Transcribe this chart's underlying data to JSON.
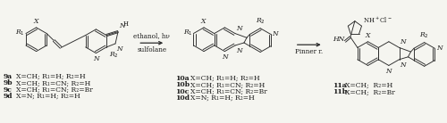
{
  "bg_color": "#f5f5f0",
  "fig_width": 5.0,
  "fig_height": 1.38,
  "dpi": 100,
  "labels_9": [
    [
      "9a",
      "X=CH; R₁=H; R₂=H"
    ],
    [
      "9b",
      "X=CH; R₁=CN; R₂=H"
    ],
    [
      "9c",
      "X=CH; R₁=CN; R₂=Br"
    ],
    [
      "9d",
      "X=N; R₁=H; R₂=H"
    ]
  ],
  "labels_10": [
    [
      "10a",
      "X=CH; R₁=H; R₂=H"
    ],
    [
      "10b",
      "X=CH; R₁=CN; R₂=H"
    ],
    [
      "10c",
      "X=CH; R₁=CN; R₂=Br"
    ],
    [
      "10d",
      "X=N; R₁=H; R₂=H"
    ]
  ],
  "labels_11": [
    [
      "11a",
      "X=CH;  R₂=H"
    ],
    [
      "11b",
      "X=CH;  R₂=Br"
    ]
  ],
  "arrow1_label_line1": "ethanol, hν",
  "arrow1_label_line2": "sulfolane",
  "arrow2_label": "Pinner r.",
  "font_size": 5.5,
  "line_color": "#2a2a2a",
  "text_color": "#1a1a1a"
}
